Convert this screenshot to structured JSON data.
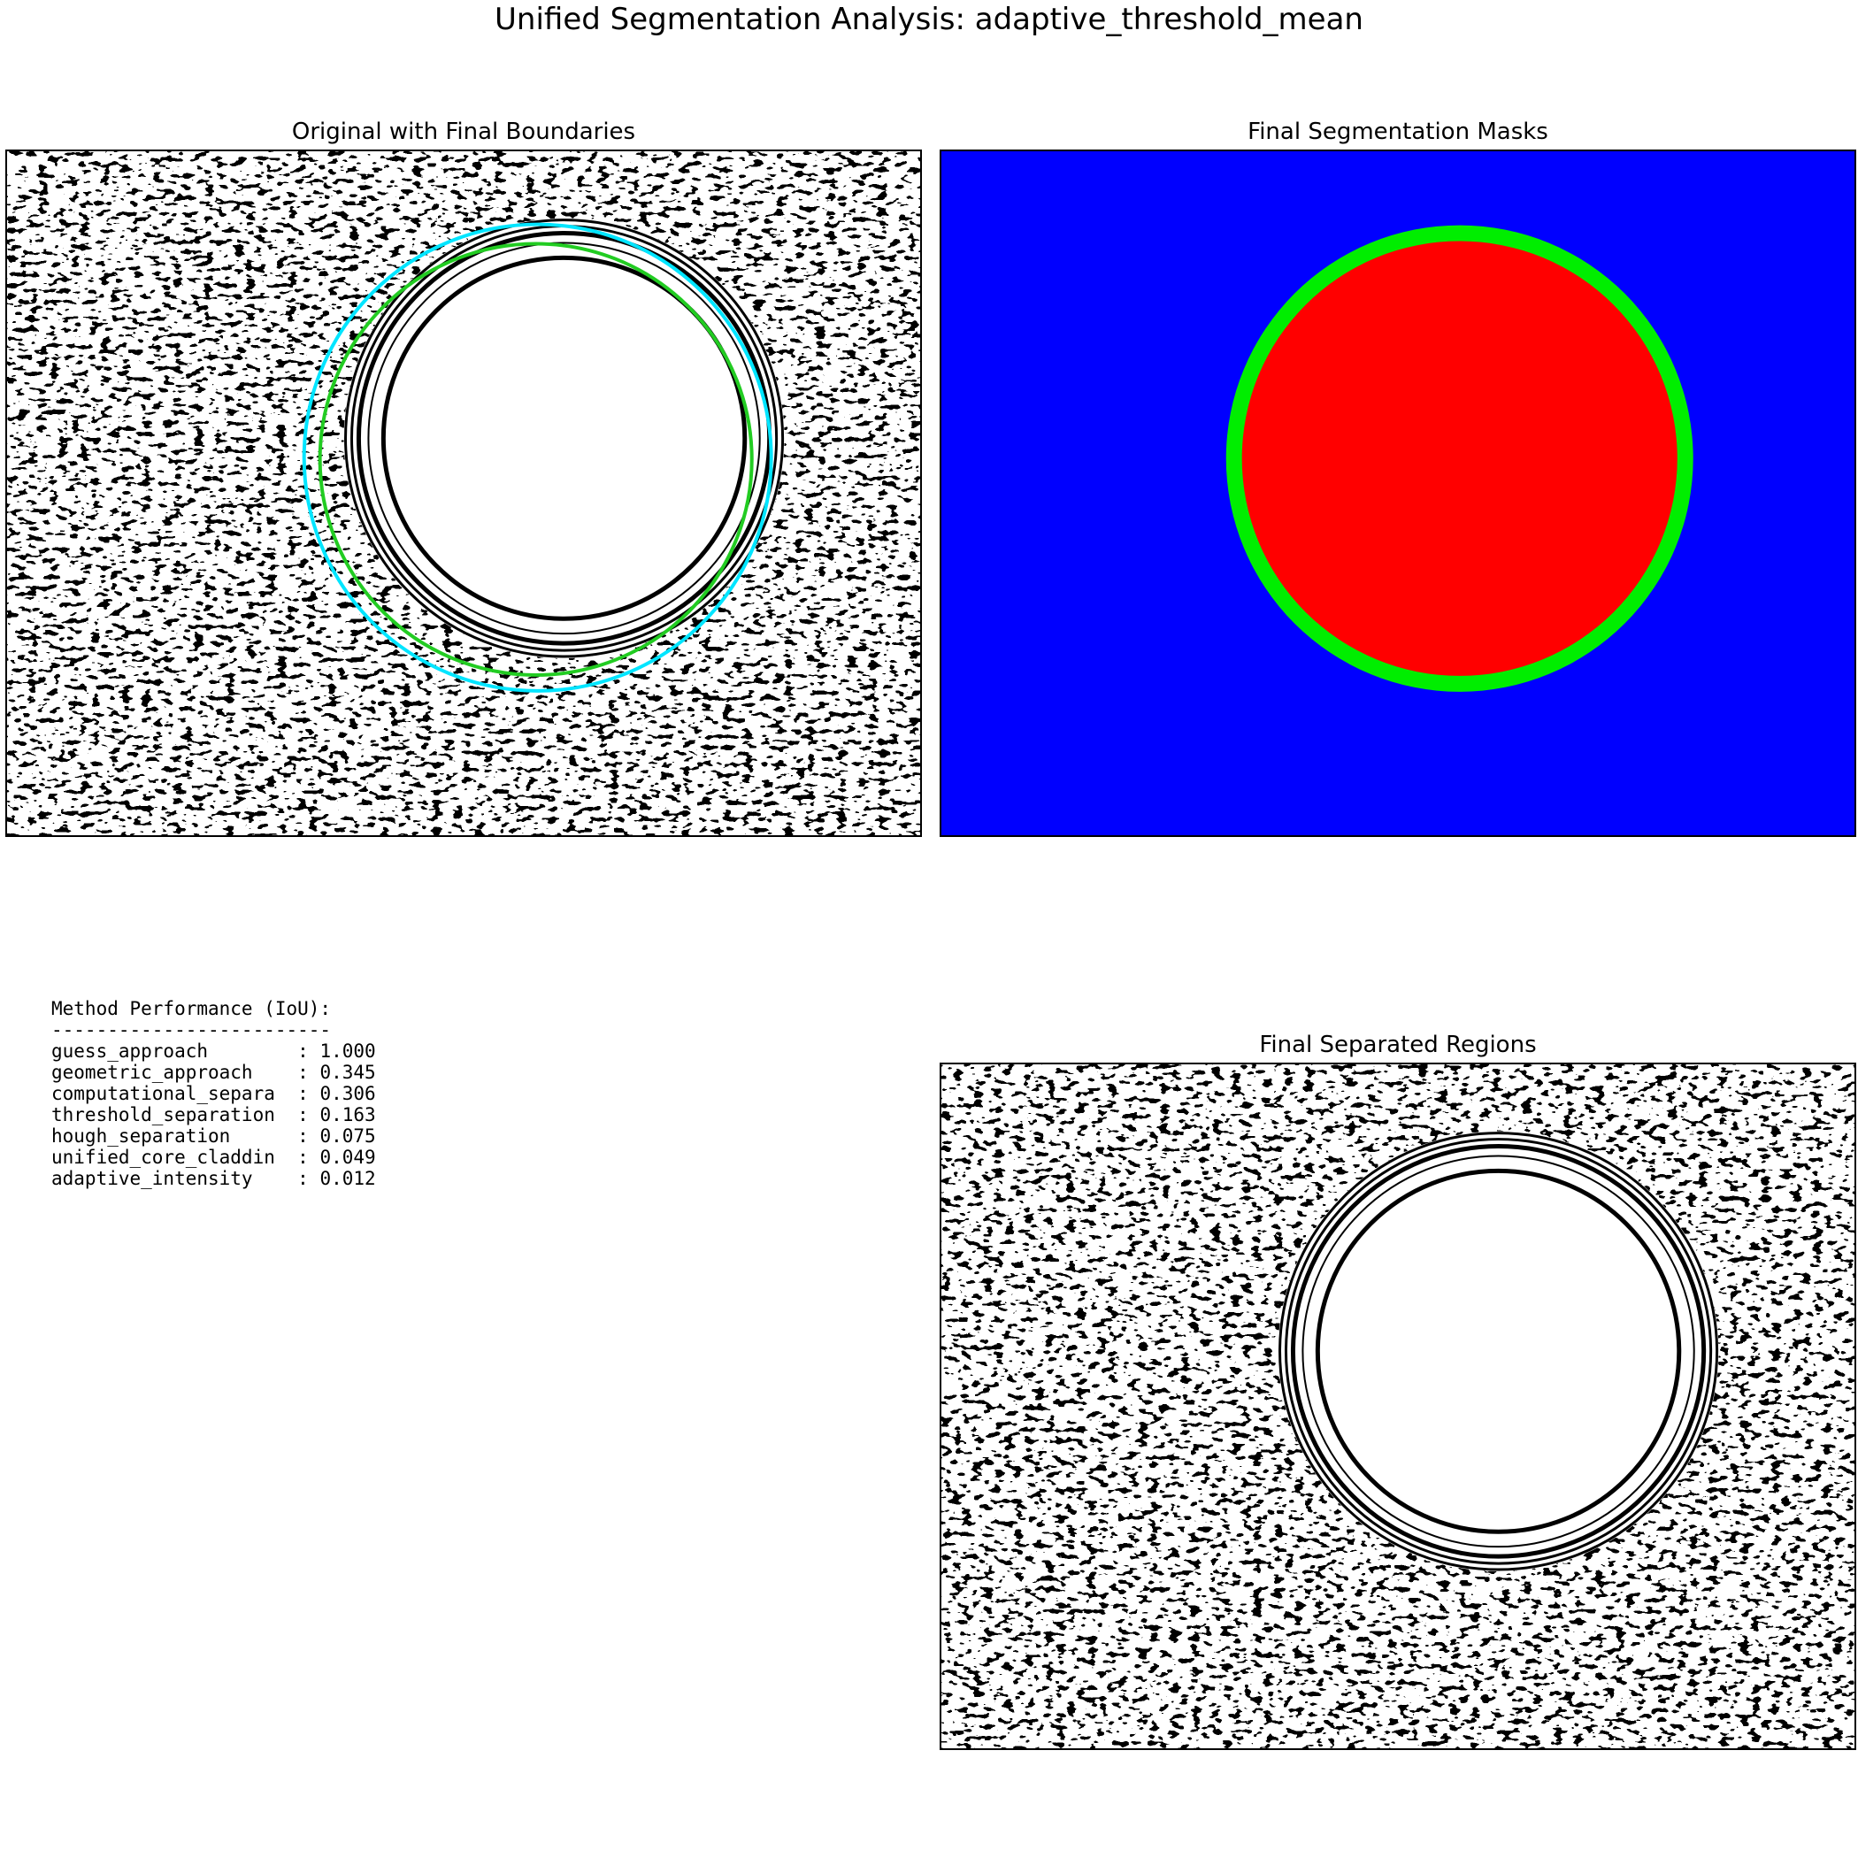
{
  "figure": {
    "title": "Unified Segmentation Analysis: adaptive_threshold_mean"
  },
  "panels": {
    "original": {
      "title": "Original with Final Boundaries"
    },
    "masks": {
      "title": "Final Segmentation Masks",
      "colors": {
        "background": "#0000ff",
        "cladding": "#00ee00",
        "core": "#ff0000"
      }
    },
    "separated": {
      "title": "Final Separated Regions"
    }
  },
  "overlay_colors": {
    "outer_boundary": "#00e5ff",
    "inner_boundary": "#22cc22"
  },
  "performance": {
    "heading": "Method Performance (IoU):",
    "divider": "-------------------------",
    "rows": [
      {
        "method": "guess_approach",
        "score": "1.000"
      },
      {
        "method": "geometric_approach",
        "score": "0.345"
      },
      {
        "method": "computational_separa",
        "score": "0.306"
      },
      {
        "method": "threshold_separation",
        "score": "0.163"
      },
      {
        "method": "hough_separation",
        "score": "0.075"
      },
      {
        "method": "unified_core_claddin",
        "score": "0.049"
      },
      {
        "method": "adaptive_intensity",
        "score": "0.012"
      }
    ]
  }
}
